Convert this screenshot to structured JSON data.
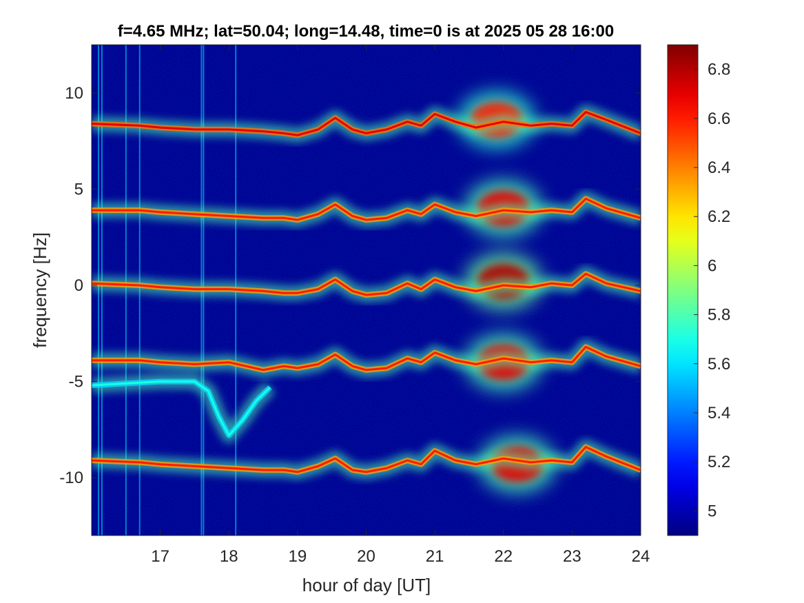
{
  "chart_data": {
    "type": "heatmap",
    "title": "f=4.65 MHz;  lat=50.04; long=14.48, time=0 is at 2025 05 28 16:00",
    "xlabel": "hour of day [UT]",
    "ylabel": "frequency [Hz]",
    "xlim": [
      16,
      24
    ],
    "ylim": [
      -13,
      12.5
    ],
    "x_ticks": [
      17,
      18,
      19,
      20,
      21,
      22,
      23,
      24
    ],
    "x_tick_labels": [
      "17",
      "18",
      "19",
      "20",
      "21",
      "22",
      "23",
      "24"
    ],
    "y_ticks": [
      10,
      5,
      0,
      -5,
      -10
    ],
    "y_tick_labels": [
      "10",
      "5",
      "0",
      "-5",
      "-10"
    ],
    "colormap": "jet",
    "colorbar": {
      "limits": [
        4.9,
        6.9
      ],
      "ticks": [
        6.8,
        6.6,
        6.4,
        6.2,
        6,
        5.8,
        5.6,
        5.4,
        5.2,
        5
      ],
      "tick_labels": [
        "6.8",
        "6.6",
        "6.4",
        "6.2",
        "6",
        "5.8",
        "5.6",
        "5.4",
        "5.2",
        "5"
      ]
    },
    "background_level": 4.95,
    "grid": false,
    "traces": [
      {
        "name": "trace at ~8.5 Hz",
        "hours": [
          16.0,
          16.7,
          17.0,
          17.5,
          18.0,
          18.5,
          18.8,
          19.0,
          19.3,
          19.55,
          19.8,
          20.0,
          20.3,
          20.6,
          20.8,
          21.0,
          21.3,
          21.6,
          22.0,
          22.4,
          22.7,
          23.0,
          23.2,
          23.5,
          24.0
        ],
        "freq": [
          8.4,
          8.3,
          8.2,
          8.1,
          8.1,
          8.0,
          7.9,
          7.8,
          8.1,
          8.7,
          8.1,
          7.9,
          8.1,
          8.5,
          8.3,
          8.9,
          8.5,
          8.2,
          8.5,
          8.3,
          8.4,
          8.3,
          9.0,
          8.6,
          7.9
        ],
        "level": 6.7
      },
      {
        "name": "trace at ~4 Hz",
        "hours": [
          16.0,
          16.7,
          17.0,
          17.5,
          18.0,
          18.5,
          18.8,
          19.0,
          19.3,
          19.55,
          19.8,
          20.0,
          20.3,
          20.6,
          20.8,
          21.0,
          21.3,
          21.6,
          22.0,
          22.4,
          22.7,
          23.0,
          23.2,
          23.5,
          24.0
        ],
        "freq": [
          3.9,
          3.9,
          3.8,
          3.7,
          3.6,
          3.5,
          3.5,
          3.4,
          3.7,
          4.2,
          3.6,
          3.4,
          3.5,
          3.9,
          3.7,
          4.2,
          3.8,
          3.6,
          3.9,
          3.8,
          3.9,
          3.8,
          4.5,
          4.0,
          3.5
        ],
        "level": 6.6
      },
      {
        "name": "trace at ~0 Hz",
        "hours": [
          16.0,
          16.7,
          17.0,
          17.5,
          18.0,
          18.5,
          18.8,
          19.0,
          19.3,
          19.55,
          19.8,
          20.0,
          20.3,
          20.6,
          20.8,
          21.0,
          21.3,
          21.6,
          22.0,
          22.4,
          22.7,
          23.0,
          23.2,
          23.5,
          24.0
        ],
        "freq": [
          0.1,
          0.0,
          -0.1,
          -0.2,
          -0.2,
          -0.3,
          -0.4,
          -0.4,
          -0.2,
          0.3,
          -0.3,
          -0.5,
          -0.4,
          0.1,
          -0.2,
          0.3,
          -0.1,
          -0.3,
          0.0,
          -0.1,
          0.1,
          0.0,
          0.6,
          0.1,
          -0.3
        ],
        "level": 6.6
      },
      {
        "name": "trace at ~-4 Hz",
        "hours": [
          16.0,
          16.7,
          17.0,
          17.5,
          18.0,
          18.5,
          18.8,
          19.0,
          19.3,
          19.55,
          19.8,
          20.0,
          20.3,
          20.6,
          20.8,
          21.0,
          21.3,
          21.6,
          22.0,
          22.4,
          22.7,
          23.0,
          23.2,
          23.5,
          24.0
        ],
        "freq": [
          -3.9,
          -3.9,
          -4.0,
          -4.1,
          -4.0,
          -4.4,
          -4.2,
          -4.3,
          -4.1,
          -3.6,
          -4.2,
          -4.4,
          -4.3,
          -3.8,
          -4.0,
          -3.5,
          -3.9,
          -4.1,
          -3.8,
          -4.0,
          -3.9,
          -4.0,
          -3.2,
          -3.7,
          -4.2
        ],
        "level": 6.6
      },
      {
        "name": "trace at ~-9 Hz",
        "hours": [
          16.0,
          16.7,
          17.0,
          17.5,
          18.0,
          18.5,
          18.8,
          19.0,
          19.3,
          19.55,
          19.8,
          20.0,
          20.3,
          20.6,
          20.8,
          21.0,
          21.3,
          21.6,
          22.0,
          22.4,
          22.7,
          23.0,
          23.2,
          23.5,
          24.0
        ],
        "freq": [
          -9.1,
          -9.2,
          -9.3,
          -9.4,
          -9.5,
          -9.6,
          -9.6,
          -9.7,
          -9.4,
          -9.0,
          -9.6,
          -9.7,
          -9.5,
          -9.1,
          -9.3,
          -8.6,
          -9.1,
          -9.3,
          -9.0,
          -9.2,
          -9.1,
          -9.2,
          -8.4,
          -8.9,
          -9.6
        ],
        "level": 6.6
      },
      {
        "name": "curved trace near -5 Hz",
        "hours": [
          16.0,
          16.5,
          17.0,
          17.5,
          17.7,
          17.85,
          18.0,
          18.2,
          18.4,
          18.6
        ],
        "freq": [
          -5.2,
          -5.1,
          -5.0,
          -5.0,
          -5.5,
          -6.8,
          -7.8,
          -7.0,
          -6.0,
          -5.3
        ],
        "level": 5.7
      }
    ],
    "blobs": [
      {
        "hour": 22.0,
        "freq": 4.0,
        "level": 6.7
      },
      {
        "hour": 22.0,
        "freq": 0.2,
        "level": 6.8
      },
      {
        "hour": 22.0,
        "freq": -4.0,
        "level": 6.7
      },
      {
        "hour": 22.2,
        "freq": -9.3,
        "level": 6.7
      },
      {
        "hour": 21.9,
        "freq": 8.6,
        "level": 6.6
      }
    ]
  }
}
